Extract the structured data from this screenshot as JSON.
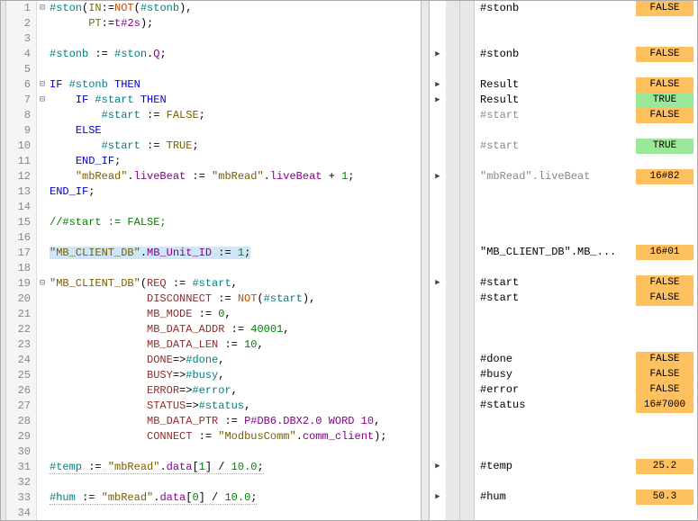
{
  "code": {
    "l1": {
      "n": "1",
      "fold": "⊟",
      "html": "<span class='fn'>#ston</span>(<span class='olive'>IN</span>:=<span class='builtin'>NOT</span>(<span class='fn'>#stonb</span>),"
    },
    "l2": {
      "n": "2",
      "fold": "",
      "html": "      <span class='olive'>PT</span>:=<span class='mag'>t#2s</span>);"
    },
    "l3": {
      "n": "3",
      "fold": "",
      "html": ""
    },
    "l4": {
      "n": "4",
      "fold": "",
      "html": "<span class='fn'>#stonb</span> := <span class='fn'>#ston</span>.<span class='mag'>Q</span>;"
    },
    "l5": {
      "n": "5",
      "fold": "",
      "html": ""
    },
    "l6": {
      "n": "6",
      "fold": "⊟",
      "html": "<span class='kw'>IF</span> <span class='fn'>#stonb</span> <span class='kw'>THEN</span>"
    },
    "l7": {
      "n": "7",
      "fold": "⊟",
      "html": "    <span class='kw'>IF</span> <span class='fn'>#start</span> <span class='kw'>THEN</span>"
    },
    "l8": {
      "n": "8",
      "fold": "",
      "html": "        <span class='fn'>#start</span> := <span class='bool'>FALSE</span>;"
    },
    "l9": {
      "n": "9",
      "fold": "",
      "html": "    <span class='kw'>ELSE</span>"
    },
    "l10": {
      "n": "10",
      "fold": "",
      "html": "        <span class='fn'>#start</span> := <span class='bool'>TRUE</span>;"
    },
    "l11": {
      "n": "11",
      "fold": "",
      "html": "    <span class='kw'>END_IF</span>;"
    },
    "l12": {
      "n": "12",
      "fold": "",
      "html": "    <span class='idq'>\"mbRead\"</span>.<span class='mag'>liveBeat</span> := <span class='idq'>\"mbRead\"</span>.<span class='mag'>liveBeat</span> + <span class='num'>1</span>;"
    },
    "l13": {
      "n": "13",
      "fold": "",
      "html": "<span class='kw'>END_IF</span>;"
    },
    "l14": {
      "n": "14",
      "fold": "",
      "html": ""
    },
    "l15": {
      "n": "15",
      "fold": "",
      "html": "<span class='comment'>//#start := FALSE;</span>"
    },
    "l16": {
      "n": "16",
      "fold": "",
      "html": ""
    },
    "l17": {
      "n": "17",
      "fold": "",
      "html": "<span class='sel'><span class='idq'>\"MB_CLIENT_DB\"</span>.<span class='mag'>MB_Unit_ID</span> := <span class='num'>1</span>;</span>"
    },
    "l18": {
      "n": "18",
      "fold": "",
      "html": ""
    },
    "l19": {
      "n": "19",
      "fold": "⊟",
      "html": "<span class='idq'>\"MB_CLIENT_DB\"</span>(<span class='dkred'>REQ</span> := <span class='fn'>#start</span>,"
    },
    "l20": {
      "n": "20",
      "fold": "",
      "html": "               <span class='dkred'>DISCONNECT</span> := <span class='builtin'>NOT</span>(<span class='fn'>#start</span>),"
    },
    "l21": {
      "n": "21",
      "fold": "",
      "html": "               <span class='dkred'>MB_MODE</span> := <span class='num'>0</span>,"
    },
    "l22": {
      "n": "22",
      "fold": "",
      "html": "               <span class='dkred'>MB_DATA_ADDR</span> := <span class='num'>40001</span>,"
    },
    "l23": {
      "n": "23",
      "fold": "",
      "html": "               <span class='dkred'>MB_DATA_LEN</span> := <span class='num'>10</span>,"
    },
    "l24": {
      "n": "24",
      "fold": "",
      "html": "               <span class='dkred'>DONE</span>=><span class='fn'>#done</span>,"
    },
    "l25": {
      "n": "25",
      "fold": "",
      "html": "               <span class='dkred'>BUSY</span>=><span class='fn'>#busy</span>,"
    },
    "l26": {
      "n": "26",
      "fold": "",
      "html": "               <span class='dkred'>ERROR</span>=><span class='fn'>#error</span>,"
    },
    "l27": {
      "n": "27",
      "fold": "",
      "html": "               <span class='dkred'>STATUS</span>=><span class='fn'>#status</span>,"
    },
    "l28": {
      "n": "28",
      "fold": "",
      "html": "               <span class='dkred'>MB_DATA_PTR</span> := <span class='mag'>P#DB6.DBX2.0 WORD 10</span>,"
    },
    "l29": {
      "n": "29",
      "fold": "",
      "html": "               <span class='dkred'>CONNECT</span> := <span class='idq'>\"ModbusComm\"</span>.<span class='mag'>comm_client</span>);"
    },
    "l30": {
      "n": "30",
      "fold": "",
      "html": ""
    },
    "l31": {
      "n": "31",
      "fold": "",
      "html": "<span class='under'><span class='fn'>#temp</span> := <span class='idq'>\"mbRead\"</span>.<span class='mag'>data</span>[<span class='num'>1</span>] / <span class='num'>10.0</span>;</span>"
    },
    "l32": {
      "n": "32",
      "fold": "",
      "html": ""
    },
    "l33": {
      "n": "33",
      "fold": "",
      "html": "<span class='under'><span class='fn'>#hum</span> := <span class='idq'>\"mbRead\"</span>.<span class='mag'>data</span>[<span class='num'>0</span>] / <span class='num'>10.0</span>;</span>"
    },
    "l34": {
      "n": "34",
      "fold": "",
      "html": ""
    }
  },
  "watch": {
    "r1": {
      "tri": "",
      "name": "#stonb",
      "val": "FALSE",
      "cls": "v-false",
      "gray": false
    },
    "r2": {
      "tri": "",
      "name": "",
      "val": "",
      "cls": "",
      "gray": false
    },
    "r3": {
      "tri": "",
      "name": "",
      "val": "",
      "cls": "",
      "gray": false
    },
    "r4": {
      "tri": "▶",
      "name": "#stonb",
      "val": "FALSE",
      "cls": "v-false",
      "gray": false
    },
    "r5": {
      "tri": "",
      "name": "",
      "val": "",
      "cls": "",
      "gray": false
    },
    "r6": {
      "tri": "▶",
      "name": "Result",
      "val": "FALSE",
      "cls": "v-false",
      "gray": false
    },
    "r7": {
      "tri": "▶",
      "name": "Result",
      "val": "TRUE",
      "cls": "v-true",
      "gray": false
    },
    "r8": {
      "tri": "",
      "name": "#start",
      "val": "FALSE",
      "cls": "v-false",
      "gray": true
    },
    "r9": {
      "tri": "",
      "name": "",
      "val": "",
      "cls": "",
      "gray": false
    },
    "r10": {
      "tri": "",
      "name": "#start",
      "val": "TRUE",
      "cls": "v-true",
      "gray": true
    },
    "r11": {
      "tri": "",
      "name": "",
      "val": "",
      "cls": "",
      "gray": false
    },
    "r12": {
      "tri": "▶",
      "name": "\"mbRead\".liveBeat",
      "val": "16#82",
      "cls": "v-hex",
      "gray": true
    },
    "r13": {
      "tri": "",
      "name": "",
      "val": "",
      "cls": "",
      "gray": false
    },
    "r14": {
      "tri": "",
      "name": "",
      "val": "",
      "cls": "",
      "gray": false
    },
    "r15": {
      "tri": "",
      "name": "",
      "val": "",
      "cls": "",
      "gray": false
    },
    "r16": {
      "tri": "",
      "name": "",
      "val": "",
      "cls": "",
      "gray": false
    },
    "r17": {
      "tri": "",
      "name": "\"MB_CLIENT_DB\".MB_...",
      "val": "16#01",
      "cls": "v-hex",
      "gray": false
    },
    "r18": {
      "tri": "",
      "name": "",
      "val": "",
      "cls": "",
      "gray": false
    },
    "r19": {
      "tri": "▶",
      "name": "#start",
      "val": "FALSE",
      "cls": "v-false",
      "gray": false
    },
    "r20": {
      "tri": "",
      "name": "#start",
      "val": "FALSE",
      "cls": "v-false",
      "gray": false
    },
    "r21": {
      "tri": "",
      "name": "",
      "val": "",
      "cls": "",
      "gray": false
    },
    "r22": {
      "tri": "",
      "name": "",
      "val": "",
      "cls": "",
      "gray": false
    },
    "r23": {
      "tri": "",
      "name": "",
      "val": "",
      "cls": "",
      "gray": false
    },
    "r24": {
      "tri": "",
      "name": "#done",
      "val": "FALSE",
      "cls": "v-false",
      "gray": false
    },
    "r25": {
      "tri": "",
      "name": "#busy",
      "val": "FALSE",
      "cls": "v-false",
      "gray": false
    },
    "r26": {
      "tri": "",
      "name": "#error",
      "val": "FALSE",
      "cls": "v-false",
      "gray": false
    },
    "r27": {
      "tri": "",
      "name": "#status",
      "val": "16#7000",
      "cls": "v-hex",
      "gray": false
    },
    "r28": {
      "tri": "",
      "name": "",
      "val": "",
      "cls": "",
      "gray": false
    },
    "r29": {
      "tri": "",
      "name": "",
      "val": "",
      "cls": "",
      "gray": false
    },
    "r30": {
      "tri": "",
      "name": "",
      "val": "",
      "cls": "",
      "gray": false
    },
    "r31": {
      "tri": "▶",
      "name": "#temp",
      "val": "25.2",
      "cls": "v-num",
      "gray": false
    },
    "r32": {
      "tri": "",
      "name": "",
      "val": "",
      "cls": "",
      "gray": false
    },
    "r33": {
      "tri": "▶",
      "name": "#hum",
      "val": "50.3",
      "cls": "v-num",
      "gray": false
    },
    "r34": {
      "tri": "",
      "name": "",
      "val": "",
      "cls": "",
      "gray": false
    }
  }
}
